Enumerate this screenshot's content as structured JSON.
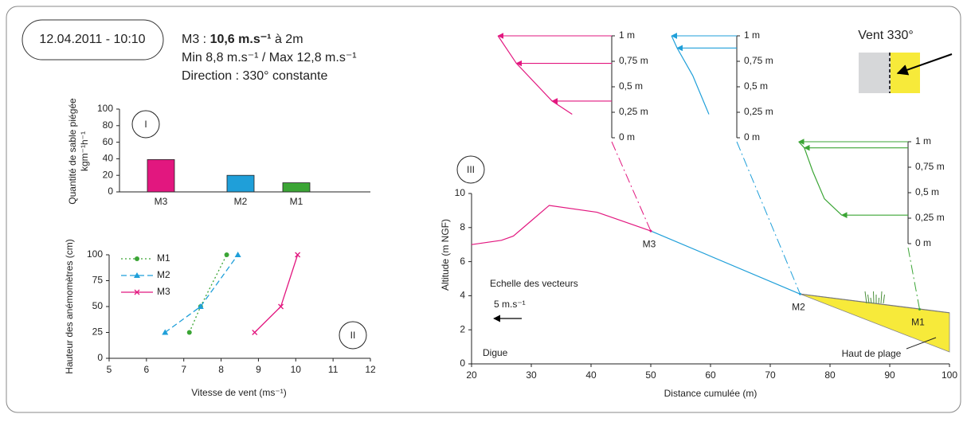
{
  "header": {
    "timestamp": "12.04.2011 - 10:10",
    "line1_station": "M3 : ",
    "line1_speed": "10,6 m.s⁻¹",
    "line1_height": " à 2m",
    "line2": "Min 8,8 m.s⁻¹ / Max 12,8 m.s⁻¹",
    "line3": "Direction : 330° constante"
  },
  "wind_inset": {
    "label": "Vent 330°"
  },
  "chart_data": [
    {
      "type": "bar",
      "panel": "I",
      "ylabel": [
        "Quantité de sable piégée",
        "kgm⁻¹h⁻¹"
      ],
      "categories": [
        "M3",
        "M2",
        "M1"
      ],
      "values": [
        39,
        20,
        11
      ],
      "colors": [
        "#e2177f",
        "#1f9fd9",
        "#3ba535"
      ],
      "ylim": [
        0,
        100
      ],
      "yticks": [
        0,
        20,
        40,
        60,
        80,
        100
      ]
    },
    {
      "type": "line",
      "panel": "II",
      "xlabel": "Vitesse de vent (ms⁻¹)",
      "ylabel": "Hauteur des anémomètres (cm)",
      "xlim": [
        5,
        12
      ],
      "xticks": [
        5,
        6,
        7,
        8,
        9,
        10,
        11,
        12
      ],
      "ylim": [
        0,
        100
      ],
      "yticks": [
        0,
        25,
        50,
        75,
        100
      ],
      "legend": "top-left",
      "series": [
        {
          "name": "M1",
          "color": "#3ba535",
          "marker": "circle",
          "dash": "dotted",
          "x": [
            7.15,
            7.45,
            8.15
          ],
          "values": [
            25,
            50,
            100
          ]
        },
        {
          "name": "M2",
          "color": "#1f9fd9",
          "marker": "triangle",
          "dash": "dashed",
          "x": [
            6.5,
            7.45,
            8.45
          ],
          "values": [
            25,
            50,
            100
          ]
        },
        {
          "name": "M3",
          "color": "#e2177f",
          "marker": "cross",
          "dash": "solid",
          "x": [
            8.9,
            9.6,
            10.05
          ],
          "values": [
            25,
            50,
            100
          ]
        }
      ]
    },
    {
      "type": "profile",
      "panel": "III",
      "xlabel": "Distance cumulée (m)",
      "ylabel": "Altitude (m NGF)",
      "xlim": [
        20,
        100
      ],
      "xticks": [
        20,
        30,
        40,
        50,
        60,
        70,
        80,
        90,
        100
      ],
      "ylim": [
        0,
        10
      ],
      "yticks": [
        0,
        2,
        4,
        6,
        8,
        10
      ],
      "series": [
        {
          "color": "#e2177f",
          "x": [
            20,
            25,
            27,
            30,
            33,
            41,
            50
          ],
          "values": [
            7,
            7.25,
            7.5,
            8.4,
            9.3,
            8.9,
            7.8
          ]
        },
        {
          "color": "#1f9fd9",
          "x": [
            50,
            75
          ],
          "values": [
            7.8,
            4.1
          ]
        },
        {
          "color": "#777777",
          "x": [
            75,
            100
          ],
          "values": [
            4.1,
            3.0
          ]
        }
      ],
      "beach": {
        "label": "Haut de plage",
        "color": "#f7ea3a",
        "x": [
          75,
          100,
          100
        ],
        "values": [
          4.1,
          3.0,
          0.7
        ]
      },
      "stations": [
        {
          "name": "M3",
          "color": "#e2177f",
          "x": 50,
          "value": 7.8
        },
        {
          "name": "M2",
          "color": "#1f9fd9",
          "x": 75,
          "value": 4.1
        },
        {
          "name": "M1",
          "color": "#3ba535",
          "x": 95,
          "value": 3.2
        }
      ],
      "annotations": {
        "dike": "Digue",
        "scale_title": "Echelle des vecteurs",
        "scale_label": "5 m.s⁻¹"
      },
      "scale_value": 5,
      "vector_ticks": [
        {
          "value": 0,
          "label": "0 m"
        },
        {
          "value": 0.25,
          "label": "0,25 m"
        },
        {
          "value": 0.5,
          "label": "0,5 m"
        },
        {
          "value": 0.75,
          "label": "0,75 m"
        },
        {
          "value": 1,
          "label": "1 m"
        }
      ],
      "vector_profiles": [
        {
          "color": "#e2177f",
          "arrow_heights": [
            1,
            0.73,
            0.36
          ],
          "arrow_speeds": [
            20.4,
            17.1,
            10.7
          ],
          "curve_heights": [
            1,
            0.73,
            0.36,
            0.23
          ],
          "curve_speeds": [
            20.4,
            17.1,
            10.7,
            7.1
          ]
        },
        {
          "color": "#1f9fd9",
          "arrow_heights": [
            1,
            0.88
          ],
          "arrow_speeds": [
            11.7,
            10.7
          ],
          "curve_heights": [
            1,
            0.88,
            0.61,
            0.23
          ],
          "curve_speeds": [
            11.7,
            10.7,
            7.9,
            5.0
          ]
        },
        {
          "color": "#3ba535",
          "arrow_heights": [
            1,
            0.94,
            0.28
          ],
          "arrow_speeds": [
            19.6,
            18.6,
            11.9
          ],
          "curve_heights": [
            1,
            0.94,
            0.71,
            0.44,
            0.28
          ],
          "curve_speeds": [
            19.6,
            18.6,
            17.1,
            15.0,
            11.9
          ]
        }
      ]
    }
  ]
}
